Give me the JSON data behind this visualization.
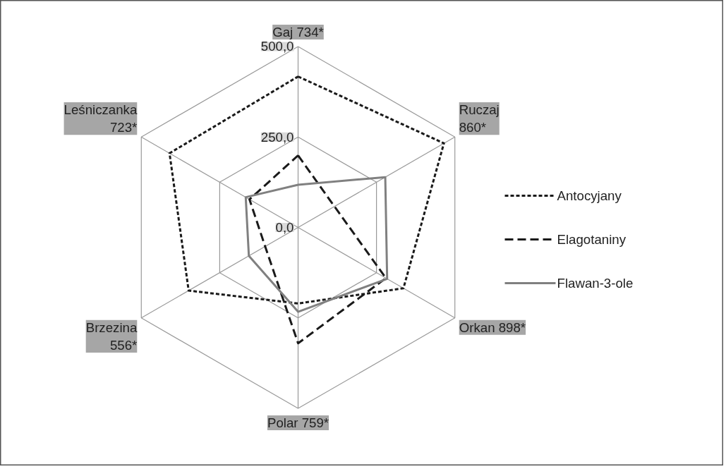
{
  "chart_data": {
    "type": "radar",
    "categories": [
      "Gaj 734*",
      "Ruczaj 860*",
      "Orkan 898*",
      "Polar 759*",
      "Brzezina 556*",
      "Leśniczanka 723*"
    ],
    "ylim": [
      0,
      500
    ],
    "yticks": [
      {
        "value": 0,
        "label": "0,0"
      },
      {
        "value": 250,
        "label": "250,0"
      },
      {
        "value": 500,
        "label": "500,0"
      }
    ],
    "grid": true,
    "legend": "right",
    "marker": "none",
    "series": [
      {
        "name": "Antocyjany",
        "color": "#1a1a1a",
        "line_style": "dotted",
        "values": [
          417,
          465,
          336,
          210,
          349,
          410
        ]
      },
      {
        "name": "Elagotaniny",
        "color": "#1a1a1a",
        "line_style": "dashed",
        "values": [
          199,
          116,
          280,
          320,
          105,
          155
        ]
      },
      {
        "name": "Flawan-3-ole",
        "color": "#808080",
        "line_style": "solid",
        "values": [
          118,
          278,
          284,
          233,
          157,
          167
        ]
      }
    ]
  }
}
